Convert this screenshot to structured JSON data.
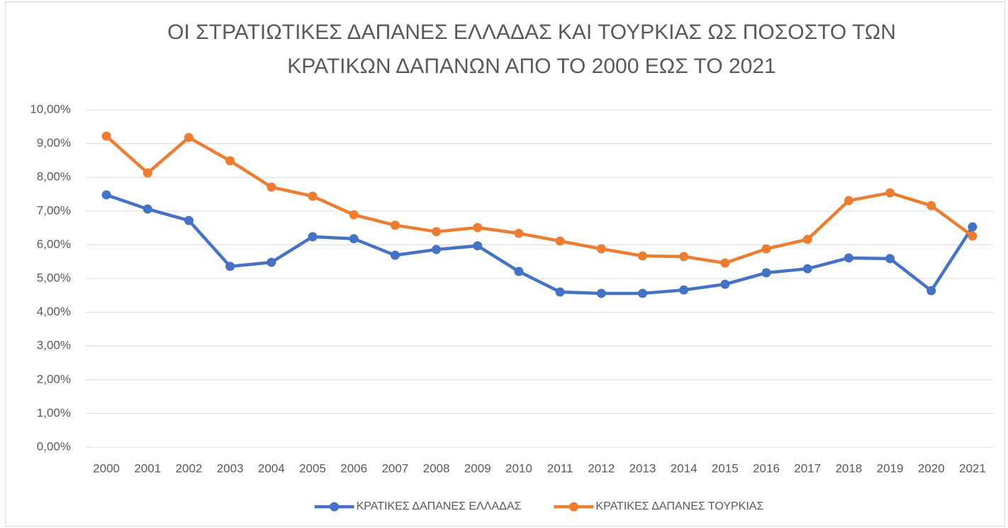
{
  "chart_data": {
    "type": "line",
    "title": [
      "ΟΙ ΣΤΡΑΤΙΩΤΙΚΕΣ ΔΑΠΑΝΕΣ ΕΛΛΑΔΑΣ ΚΑΙ ΤΟΥΡΚΙΑΣ ΩΣ ΠΟΣΟΣΤΟ ΤΩΝ",
      "ΚΡΑΤΙΚΩΝ ΔΑΠΑΝΩΝ ΑΠΟ ΤΟ 2000 ΕΩΣ ΤΟ 2021"
    ],
    "categories": [
      "2000",
      "2001",
      "2002",
      "2003",
      "2004",
      "2005",
      "2006",
      "2007",
      "2008",
      "2009",
      "2010",
      "2011",
      "2012",
      "2013",
      "2014",
      "2015",
      "2016",
      "2017",
      "2018",
      "2019",
      "2020",
      "2021"
    ],
    "series": [
      {
        "name": "ΚΡΑΤΙΚΕΣ ΔΑΠΑΝΕΣ ΕΛΛΑΔΑΣ",
        "color": "#4472c4",
        "values": [
          7.48,
          7.06,
          6.72,
          5.36,
          5.48,
          6.24,
          6.18,
          5.69,
          5.86,
          5.97,
          5.21,
          4.6,
          4.56,
          4.56,
          4.66,
          4.83,
          5.17,
          5.29,
          5.61,
          5.59,
          4.64,
          6.53
        ]
      },
      {
        "name": "ΚΡΑΤΙΚΕΣ ΔΑΠΑΝΕΣ ΤΟΥΡΚΙΑΣ",
        "color": "#ed7d31",
        "values": [
          9.22,
          8.13,
          9.18,
          8.49,
          7.71,
          7.44,
          6.89,
          6.58,
          6.39,
          6.51,
          6.34,
          6.11,
          5.88,
          5.67,
          5.65,
          5.46,
          5.88,
          6.16,
          7.31,
          7.54,
          7.16,
          6.26
        ]
      }
    ],
    "ylim": [
      0,
      10
    ],
    "yticks": [
      {
        "value": 0,
        "label": "0,00%"
      },
      {
        "value": 1,
        "label": "1,00%"
      },
      {
        "value": 2,
        "label": "2,00%"
      },
      {
        "value": 3,
        "label": "3,00%"
      },
      {
        "value": 4,
        "label": "4,00%"
      },
      {
        "value": 5,
        "label": "5,00%"
      },
      {
        "value": 6,
        "label": "6,00%"
      },
      {
        "value": 7,
        "label": "7,00%"
      },
      {
        "value": 8,
        "label": "8,00%"
      },
      {
        "value": 9,
        "label": "9,00%"
      },
      {
        "value": 10,
        "label": "10,00%"
      }
    ],
    "grid": true,
    "legend": "bottom"
  }
}
